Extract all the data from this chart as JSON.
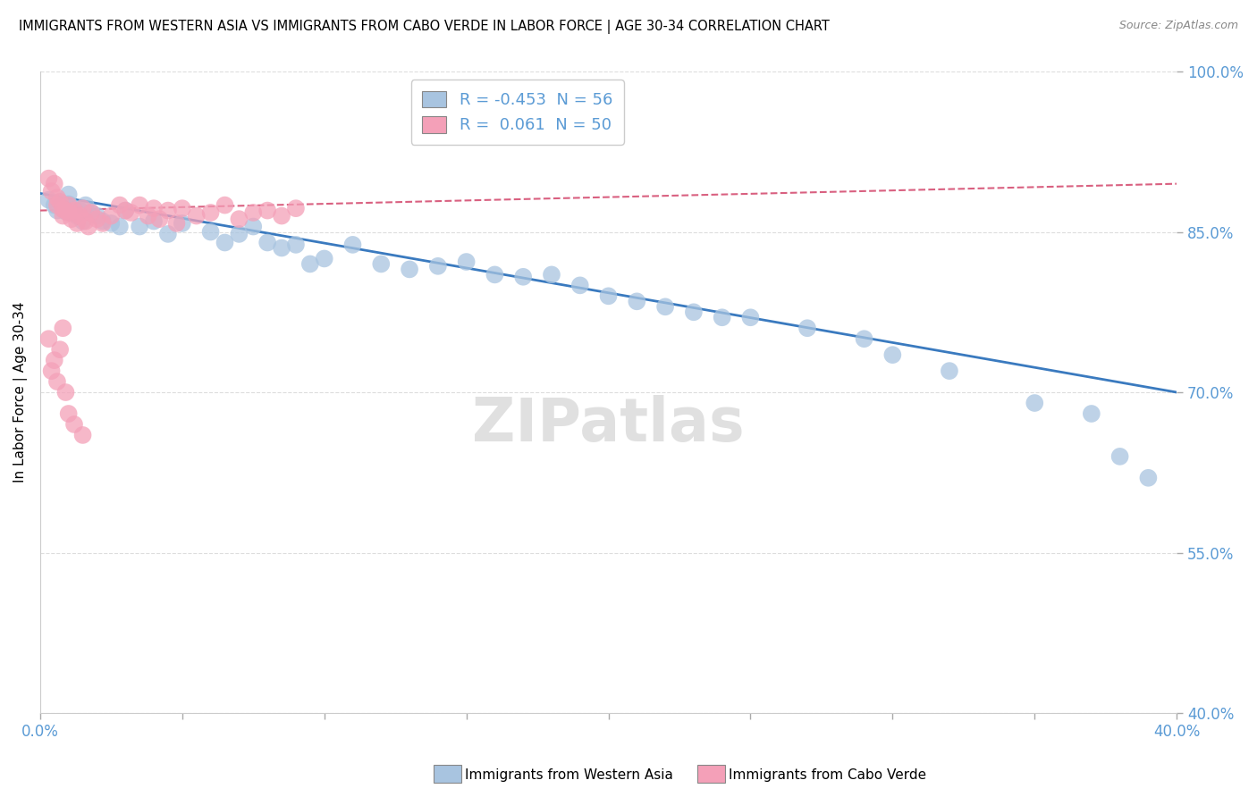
{
  "title": "IMMIGRANTS FROM WESTERN ASIA VS IMMIGRANTS FROM CABO VERDE IN LABOR FORCE | AGE 30-34 CORRELATION CHART",
  "source": "Source: ZipAtlas.com",
  "ylabel": "In Labor Force | Age 30-34",
  "xlim": [
    0.0,
    0.4
  ],
  "ylim": [
    0.4,
    1.0
  ],
  "blue_R": -0.453,
  "blue_N": 56,
  "pink_R": 0.061,
  "pink_N": 50,
  "blue_color": "#a8c4e0",
  "pink_color": "#f4a0b8",
  "blue_line_color": "#3a7abf",
  "pink_line_color": "#d96080",
  "legend_label_blue": "Immigrants from Western Asia",
  "legend_label_pink": "Immigrants from Cabo Verde",
  "blue_scatter_x": [
    0.003,
    0.005,
    0.006,
    0.007,
    0.008,
    0.009,
    0.01,
    0.01,
    0.011,
    0.012,
    0.013,
    0.014,
    0.015,
    0.016,
    0.018,
    0.02,
    0.022,
    0.025,
    0.028,
    0.03,
    0.035,
    0.04,
    0.045,
    0.05,
    0.06,
    0.065,
    0.07,
    0.075,
    0.08,
    0.085,
    0.09,
    0.095,
    0.1,
    0.11,
    0.12,
    0.13,
    0.14,
    0.15,
    0.16,
    0.17,
    0.18,
    0.19,
    0.2,
    0.21,
    0.22,
    0.23,
    0.24,
    0.25,
    0.27,
    0.29,
    0.3,
    0.32,
    0.35,
    0.37,
    0.38,
    0.39
  ],
  "blue_scatter_y": [
    0.88,
    0.875,
    0.87,
    0.878,
    0.872,
    0.869,
    0.876,
    0.885,
    0.868,
    0.872,
    0.865,
    0.87,
    0.86,
    0.875,
    0.868,
    0.865,
    0.86,
    0.858,
    0.855,
    0.87,
    0.855,
    0.86,
    0.848,
    0.858,
    0.85,
    0.84,
    0.848,
    0.855,
    0.84,
    0.835,
    0.838,
    0.82,
    0.825,
    0.838,
    0.82,
    0.815,
    0.818,
    0.822,
    0.81,
    0.808,
    0.81,
    0.8,
    0.79,
    0.785,
    0.78,
    0.775,
    0.77,
    0.77,
    0.76,
    0.75,
    0.735,
    0.72,
    0.69,
    0.68,
    0.64,
    0.62
  ],
  "pink_scatter_x": [
    0.003,
    0.004,
    0.005,
    0.006,
    0.006,
    0.007,
    0.008,
    0.008,
    0.009,
    0.01,
    0.01,
    0.011,
    0.012,
    0.013,
    0.014,
    0.015,
    0.016,
    0.017,
    0.018,
    0.02,
    0.022,
    0.025,
    0.028,
    0.03,
    0.032,
    0.035,
    0.038,
    0.04,
    0.042,
    0.045,
    0.048,
    0.05,
    0.055,
    0.06,
    0.065,
    0.07,
    0.075,
    0.08,
    0.085,
    0.09,
    0.003,
    0.004,
    0.005,
    0.006,
    0.007,
    0.008,
    0.009,
    0.01,
    0.012,
    0.015
  ],
  "pink_scatter_y": [
    0.9,
    0.888,
    0.895,
    0.882,
    0.875,
    0.878,
    0.871,
    0.865,
    0.87,
    0.868,
    0.875,
    0.862,
    0.87,
    0.858,
    0.865,
    0.872,
    0.86,
    0.855,
    0.868,
    0.862,
    0.858,
    0.865,
    0.875,
    0.87,
    0.868,
    0.875,
    0.865,
    0.872,
    0.862,
    0.87,
    0.858,
    0.872,
    0.865,
    0.868,
    0.875,
    0.862,
    0.868,
    0.87,
    0.865,
    0.872,
    0.75,
    0.72,
    0.73,
    0.71,
    0.74,
    0.76,
    0.7,
    0.68,
    0.67,
    0.66
  ]
}
